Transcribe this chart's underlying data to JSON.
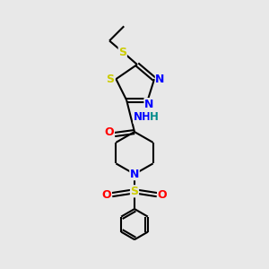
{
  "bg_color": "#e8e8e8",
  "bond_color": "#000000",
  "atom_colors": {
    "S": "#cccc00",
    "N": "#0000ff",
    "O": "#ff0000",
    "H": "#008b8b",
    "C": "#000000"
  },
  "font_size": 9,
  "line_width": 1.5,
  "figsize": [
    3.0,
    3.0
  ],
  "dpi": 100
}
